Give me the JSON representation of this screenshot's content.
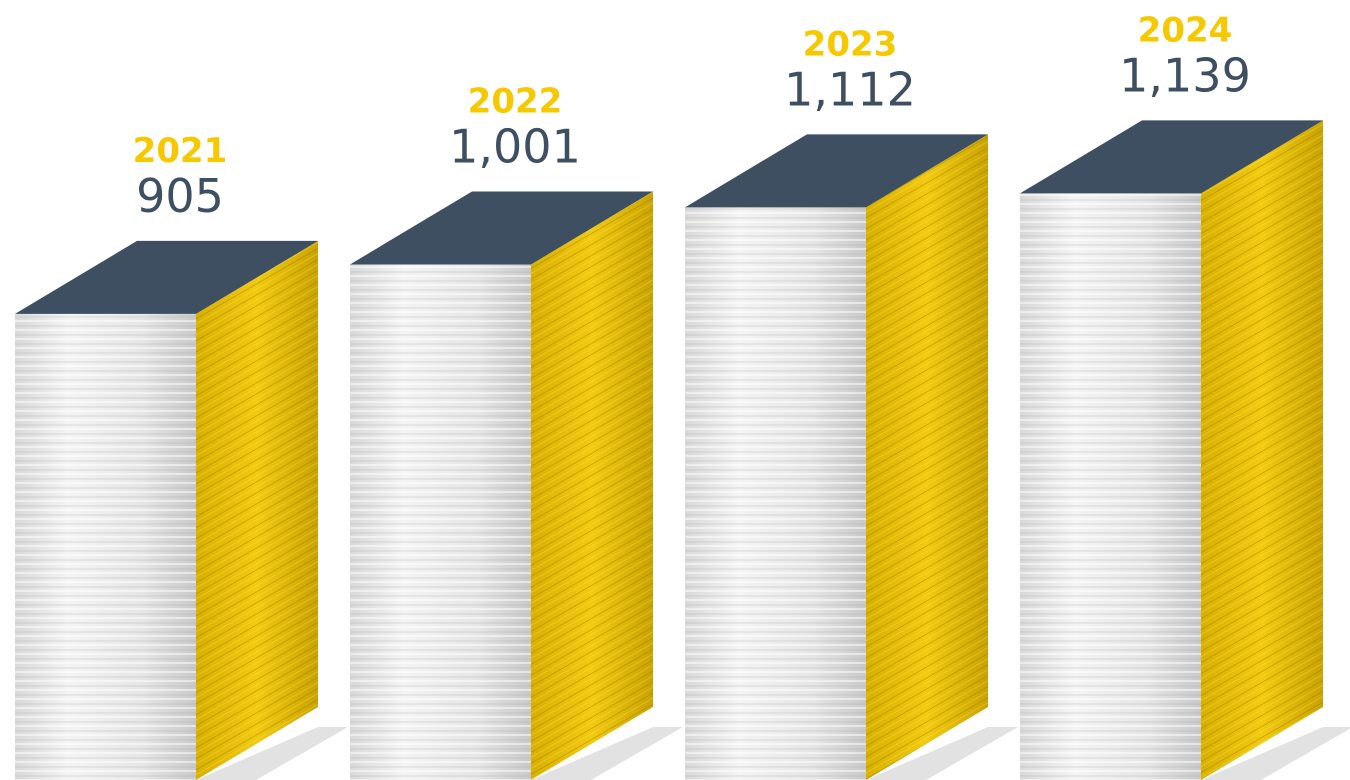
{
  "chart_data": {
    "type": "bar",
    "categories": [
      "2021",
      "2022",
      "2023",
      "2024"
    ],
    "values": [
      905,
      1001,
      1112,
      1139
    ],
    "value_labels": [
      "905",
      "1,001",
      "1,112",
      "1,139"
    ],
    "color": "#e8c200"
  }
}
